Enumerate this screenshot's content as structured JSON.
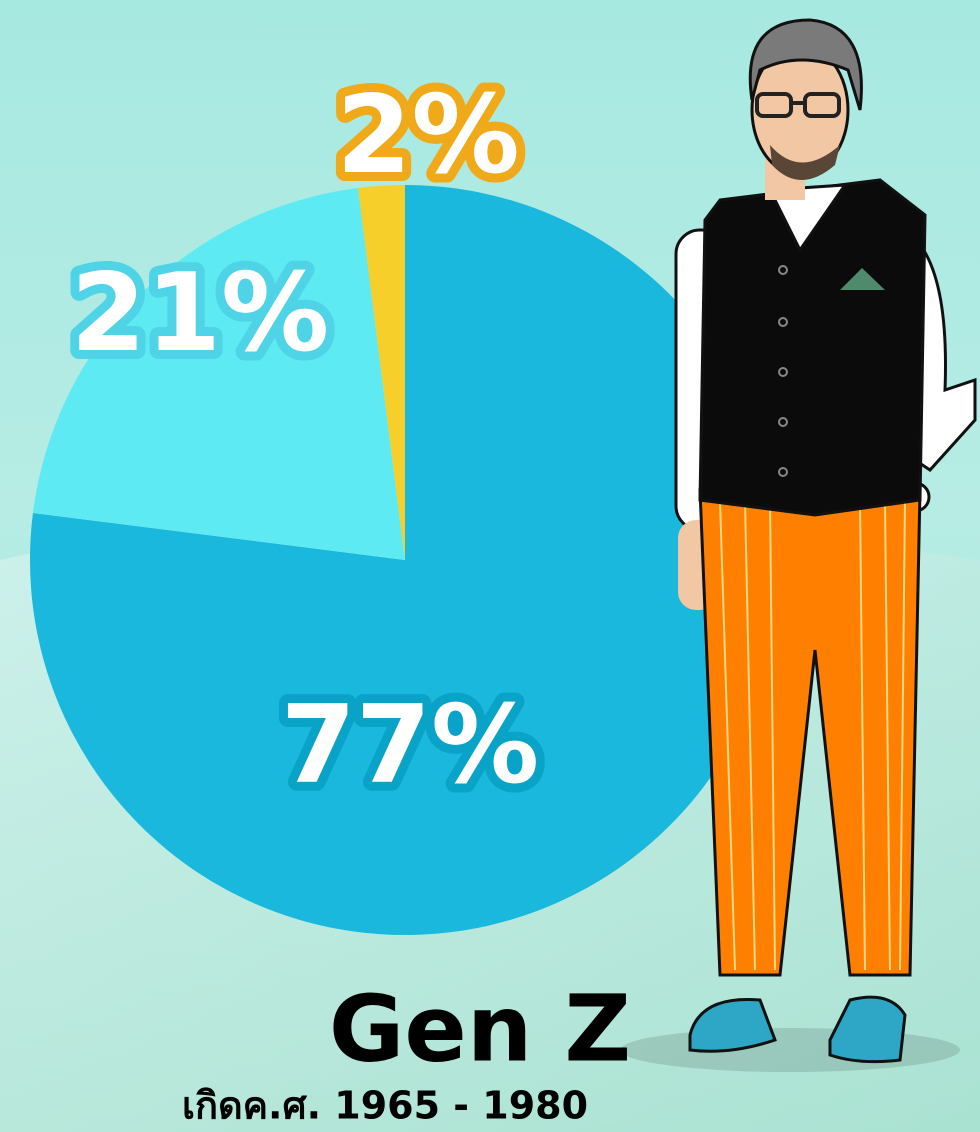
{
  "chart_data": {
    "type": "pie",
    "values": [
      77,
      21,
      2
    ],
    "value_labels": [
      "77%",
      "21%",
      "2%"
    ],
    "colors": [
      "#1ab8dd",
      "#5eeaf2",
      "#f7cf2a"
    ],
    "title": "Gen Z",
    "subtitle": "เกิดค.ศ. 1965 - 1980"
  }
}
